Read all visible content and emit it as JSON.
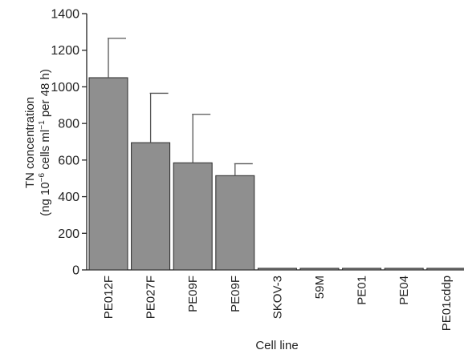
{
  "chart_data": {
    "type": "bar",
    "categories": [
      "PE012F",
      "PE027F",
      "PE09F",
      "PE09F",
      "SKOV-3",
      "59M",
      "PE01",
      "PE04",
      "PE01cddp"
    ],
    "values": [
      1050,
      695,
      585,
      515,
      5,
      5,
      2,
      2,
      2
    ],
    "error_upper": [
      1265,
      965,
      850,
      580,
      5,
      5,
      2,
      2,
      2
    ],
    "ylabel_line1": "TN concentration",
    "ylabel_line2_pre": "(ng 10",
    "ylabel_line2_sup1": "−6",
    "ylabel_line2_mid": " cells ml",
    "ylabel_line2_sup2": "−1",
    "ylabel_line2_post": " per 48 h)",
    "xlabel": "Cell line",
    "ylim": [
      0,
      1400
    ],
    "yticks": [
      0,
      200,
      400,
      600,
      800,
      1000,
      1200,
      1400
    ],
    "bar_color": "#8f8f8f",
    "grid": false
  }
}
